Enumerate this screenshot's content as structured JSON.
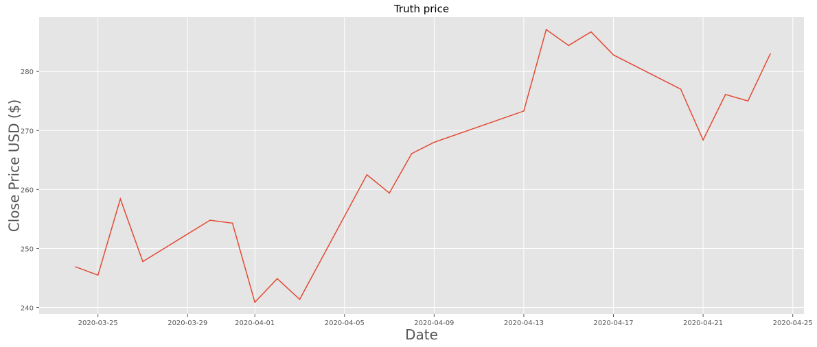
{
  "chart_data": {
    "type": "line",
    "title": "Truth price",
    "xlabel": "Date",
    "ylabel": "Close Price USD ($)",
    "x_ticks": [
      "2020-03-25",
      "2020-03-29",
      "2020-04-01",
      "2020-04-05",
      "2020-04-09",
      "2020-04-13",
      "2020-04-17",
      "2020-04-21",
      "2020-04-25"
    ],
    "y_ticks": [
      240,
      250,
      260,
      270,
      280
    ],
    "xlim": [
      "2020-03-22T09:00",
      "2020-04-25T12:00"
    ],
    "ylim": [
      238.9,
      289.2
    ],
    "grid": true,
    "series": [
      {
        "color": "#E24A33",
        "points": [
          {
            "x": "2020-03-24",
            "y": 246.9
          },
          {
            "x": "2020-03-25",
            "y": 245.5
          },
          {
            "x": "2020-03-26",
            "y": 258.4
          },
          {
            "x": "2020-03-27",
            "y": 247.8
          },
          {
            "x": "2020-03-30",
            "y": 254.8
          },
          {
            "x": "2020-03-31",
            "y": 254.3
          },
          {
            "x": "2020-04-01",
            "y": 240.9
          },
          {
            "x": "2020-04-02",
            "y": 244.9
          },
          {
            "x": "2020-04-03",
            "y": 241.4
          },
          {
            "x": "2020-04-06",
            "y": 262.5
          },
          {
            "x": "2020-04-07",
            "y": 259.4
          },
          {
            "x": "2020-04-08",
            "y": 266.1
          },
          {
            "x": "2020-04-09",
            "y": 268.0
          },
          {
            "x": "2020-04-13",
            "y": 273.3
          },
          {
            "x": "2020-04-14",
            "y": 287.1
          },
          {
            "x": "2020-04-15",
            "y": 284.4
          },
          {
            "x": "2020-04-16",
            "y": 286.7
          },
          {
            "x": "2020-04-17",
            "y": 282.8
          },
          {
            "x": "2020-04-20",
            "y": 277.0
          },
          {
            "x": "2020-04-21",
            "y": 268.4
          },
          {
            "x": "2020-04-22",
            "y": 276.1
          },
          {
            "x": "2020-04-23",
            "y": 275.0
          },
          {
            "x": "2020-04-24",
            "y": 283.0
          }
        ]
      }
    ]
  },
  "style": {
    "axes_background": "#E5E5E5",
    "grid_color": "#FFFFFF",
    "line_color": "#E24A33"
  }
}
